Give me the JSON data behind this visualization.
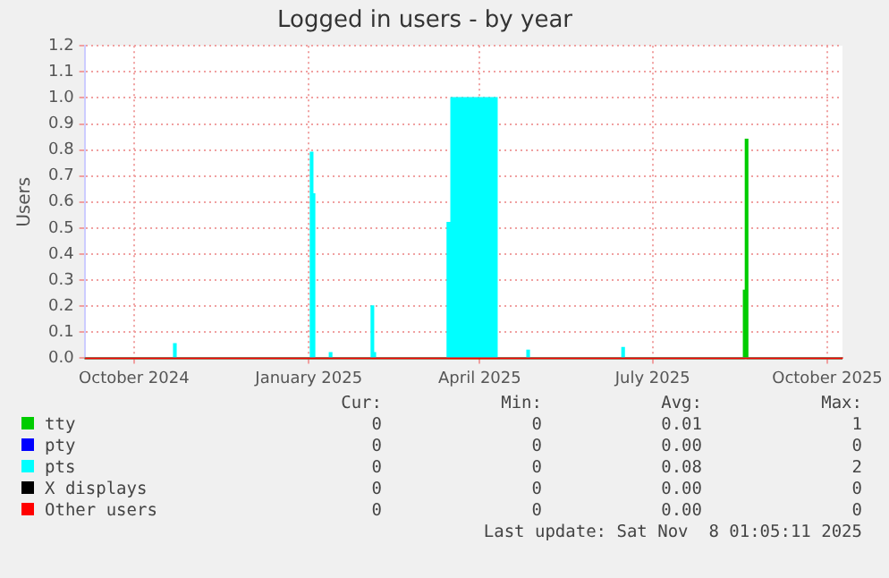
{
  "chart_data": {
    "type": "area",
    "title": "Logged in users - by year",
    "ylabel": "Users",
    "xlim": [
      "2024-09-05",
      "2025-10-09"
    ],
    "xticks": [
      {
        "value": "2024-10-01",
        "label": "October 2024"
      },
      {
        "value": "2025-01-01",
        "label": "January 2025"
      },
      {
        "value": "2025-04-01",
        "label": "April 2025"
      },
      {
        "value": "2025-07-01",
        "label": "July 2025"
      },
      {
        "value": "2025-10-01",
        "label": "October 2025"
      }
    ],
    "ylim": [
      0,
      1.2
    ],
    "yticks": [
      {
        "value": 0,
        "label": "0.0"
      },
      0.1,
      0.2,
      0.3,
      0.4,
      0.5,
      0.6,
      0.7,
      0.8,
      0.9,
      {
        "value": 1,
        "label": "1.0"
      },
      1.1,
      1.2
    ],
    "grid": true,
    "legend": "bottom",
    "series": [
      {
        "name": "tty",
        "color": "#00cc00",
        "x": [
          "2024-09-05",
          "2025-08-18",
          "2025-08-19",
          "2025-08-20",
          "2025-10-09"
        ],
        "values": [
          0,
          0.26,
          0.84,
          0,
          0
        ]
      },
      {
        "name": "pty",
        "type": "line",
        "color": "#0000ff"
      },
      {
        "name": "pts",
        "color": "#00ffff",
        "x": [
          "2024-09-05",
          "2024-10-22",
          "2024-10-23",
          "2025-01-02",
          "2025-01-03",
          "2025-01-04",
          "2025-01-12",
          "2025-01-13",
          "2025-02-03",
          "2025-02-04",
          "2025-02-05",
          "2025-03-15",
          "2025-03-17",
          "2025-04-10",
          "2025-04-26",
          "2025-04-27",
          "2025-06-15",
          "2025-06-16",
          "2025-10-09"
        ],
        "values": [
          0,
          0.055,
          0,
          0.79,
          0.63,
          0,
          0.02,
          0,
          0.2,
          0.02,
          0,
          0.52,
          1.0,
          0,
          0.03,
          0,
          0.04,
          0,
          0
        ]
      },
      {
        "name": "X displays",
        "type": "line",
        "color": "#000000"
      },
      {
        "name": "Other users",
        "type": "line",
        "color": "#ff0000",
        "x": [
          "2024-09-05",
          "2025-10-09"
        ],
        "values": [
          0,
          0
        ]
      }
    ],
    "annotations": [
      "Cur:",
      "Min:",
      "Avg:",
      "Max:",
      "0",
      "0",
      "0.01",
      "1",
      "0",
      "0",
      "0.00",
      "0",
      "0",
      "0",
      "0.08",
      "2",
      "0",
      "0",
      "0.00",
      "0",
      "0",
      "0",
      "0.00",
      "0",
      "Last update: Sat Nov  8 01:05:11 2025"
    ]
  }
}
